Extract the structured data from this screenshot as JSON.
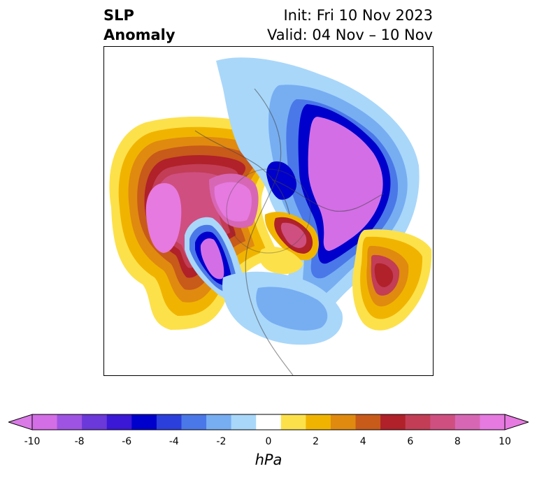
{
  "title": {
    "left_line1": "SLP",
    "left_line2": "Anomaly",
    "init": "Init: Fri 10 Nov 2023",
    "valid": "Valid: 04 Nov – 10 Nov"
  },
  "colorbar": {
    "unit_label": "hPa",
    "ticks": [
      "-10",
      "-8",
      "-6",
      "-4",
      "-2",
      "0",
      "2",
      "4",
      "6",
      "8",
      "10"
    ],
    "levels": [
      -10,
      -9,
      -8,
      -7,
      -6,
      -5,
      -4,
      -3,
      -2,
      -1,
      1,
      2,
      3,
      4,
      5,
      6,
      7,
      8,
      9,
      10
    ],
    "colors": [
      "#d36ee6",
      "#9f53e3",
      "#6b38d9",
      "#3a18d6",
      "#0000cc",
      "#2b3fdc",
      "#4a78e8",
      "#77aef2",
      "#a9d7fa",
      "#ffffff",
      "#fde14a",
      "#f0b400",
      "#e08a10",
      "#c85a1a",
      "#b0212a",
      "#c23d55",
      "#cf4f80",
      "#d767b5",
      "#e67ae0"
    ],
    "under_color": "#d97ae6",
    "over_color": "#e67ae0"
  }
}
